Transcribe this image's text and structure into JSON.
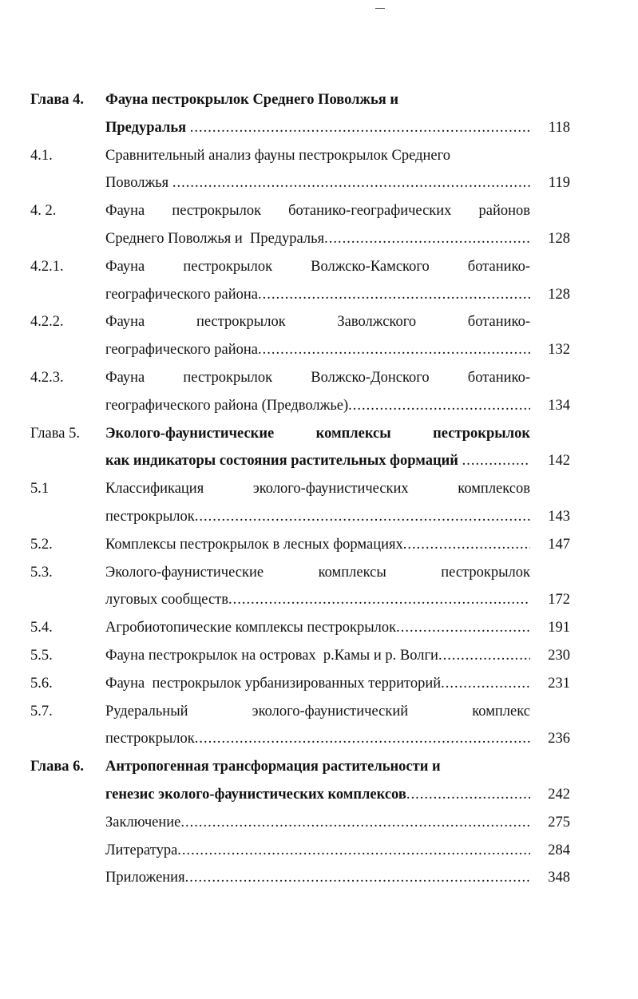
{
  "header_mark": "—",
  "toc": [
    {
      "num": "Глава 4.",
      "bold": true,
      "lines": [
        "Фауна пестрокрылок Среднего Поволжья и",
        "Предуралья "
      ],
      "page": "118",
      "first_justify": false
    },
    {
      "num": "4.1.",
      "bold": false,
      "lines": [
        "Сравнительный анализ фауны пестрокрылок  Среднего",
        "Поволжья "
      ],
      "page": "119",
      "first_justify": false
    },
    {
      "num": "4. 2.",
      "bold": false,
      "lines": [
        "Фауна пестрокрылок ботанико-географических районов",
        "Среднего Поволжья и  Предуралья"
      ],
      "page": "128",
      "first_justify": true
    },
    {
      "num": "4.2.1.",
      "bold": false,
      "lines": [
        "Фауна пестрокрылок Волжско-Камского ботанико-",
        "географического района"
      ],
      "page": "128",
      "first_justify": true
    },
    {
      "num": "4.2.2.",
      "bold": false,
      "lines": [
        "Фауна пестрокрылок Заволжского ботанико-",
        "географического района"
      ],
      "page": "132",
      "first_justify": true
    },
    {
      "num": "4.2.3.",
      "bold": false,
      "lines": [
        "Фауна пестрокрылок Волжско-Донского ботанико-",
        "географического района (Предволжье)"
      ],
      "page": "134",
      "first_justify": true
    },
    {
      "num": "Глава 5.",
      "bold": true,
      "num_bold": false,
      "lines": [
        "Эколого-фаунистические комплексы пестрокрылок",
        "как индикаторы состояния растительных формаций "
      ],
      "page": "142",
      "first_justify": true
    },
    {
      "num": "5.1",
      "bold": false,
      "lines": [
        "Классификация эколого-фаунистических комплексов",
        "пестрокрылок"
      ],
      "page": "143",
      "first_justify": true
    },
    {
      "num": "5.2.",
      "bold": false,
      "lines": [
        "Комплексы пестрокрылок в лесных формациях"
      ],
      "page": "147"
    },
    {
      "num": "5.3.",
      "bold": false,
      "lines": [
        "Эколого-фаунистические комплексы пестрокрылок",
        "луговых сообществ"
      ],
      "page": "172",
      "first_justify": true
    },
    {
      "num": "5.4.",
      "bold": false,
      "lines": [
        "Агробиотопические комплексы пестрокрылок"
      ],
      "page": "191"
    },
    {
      "num": "5.5.",
      "bold": false,
      "lines": [
        "Фауна пестрокрылок на островах  р.Камы и р. Волги"
      ],
      "page": "230"
    },
    {
      "num": "5.6.",
      "bold": false,
      "lines": [
        "Фауна  пестрокрылок урбанизированных территорий"
      ],
      "page": "231"
    },
    {
      "num": "5.7.",
      "bold": false,
      "lines": [
        "Рудеральный эколого-фаунистический комплекс",
        "пестрокрылок"
      ],
      "page": "236",
      "first_justify": true
    },
    {
      "num": "Глава 6.",
      "bold": true,
      "lines": [
        "Антропогенная трансформация растительности и",
        "генезис эколого-фаунистических комплексов"
      ],
      "page": "242",
      "first_justify": false
    },
    {
      "num": "",
      "bold": false,
      "lines": [
        "Заключение"
      ],
      "page": "275"
    },
    {
      "num": "",
      "bold": false,
      "lines": [
        "Литература"
      ],
      "page": "284"
    },
    {
      "num": "",
      "bold": false,
      "lines": [
        "Приложения"
      ],
      "page": "348"
    }
  ]
}
